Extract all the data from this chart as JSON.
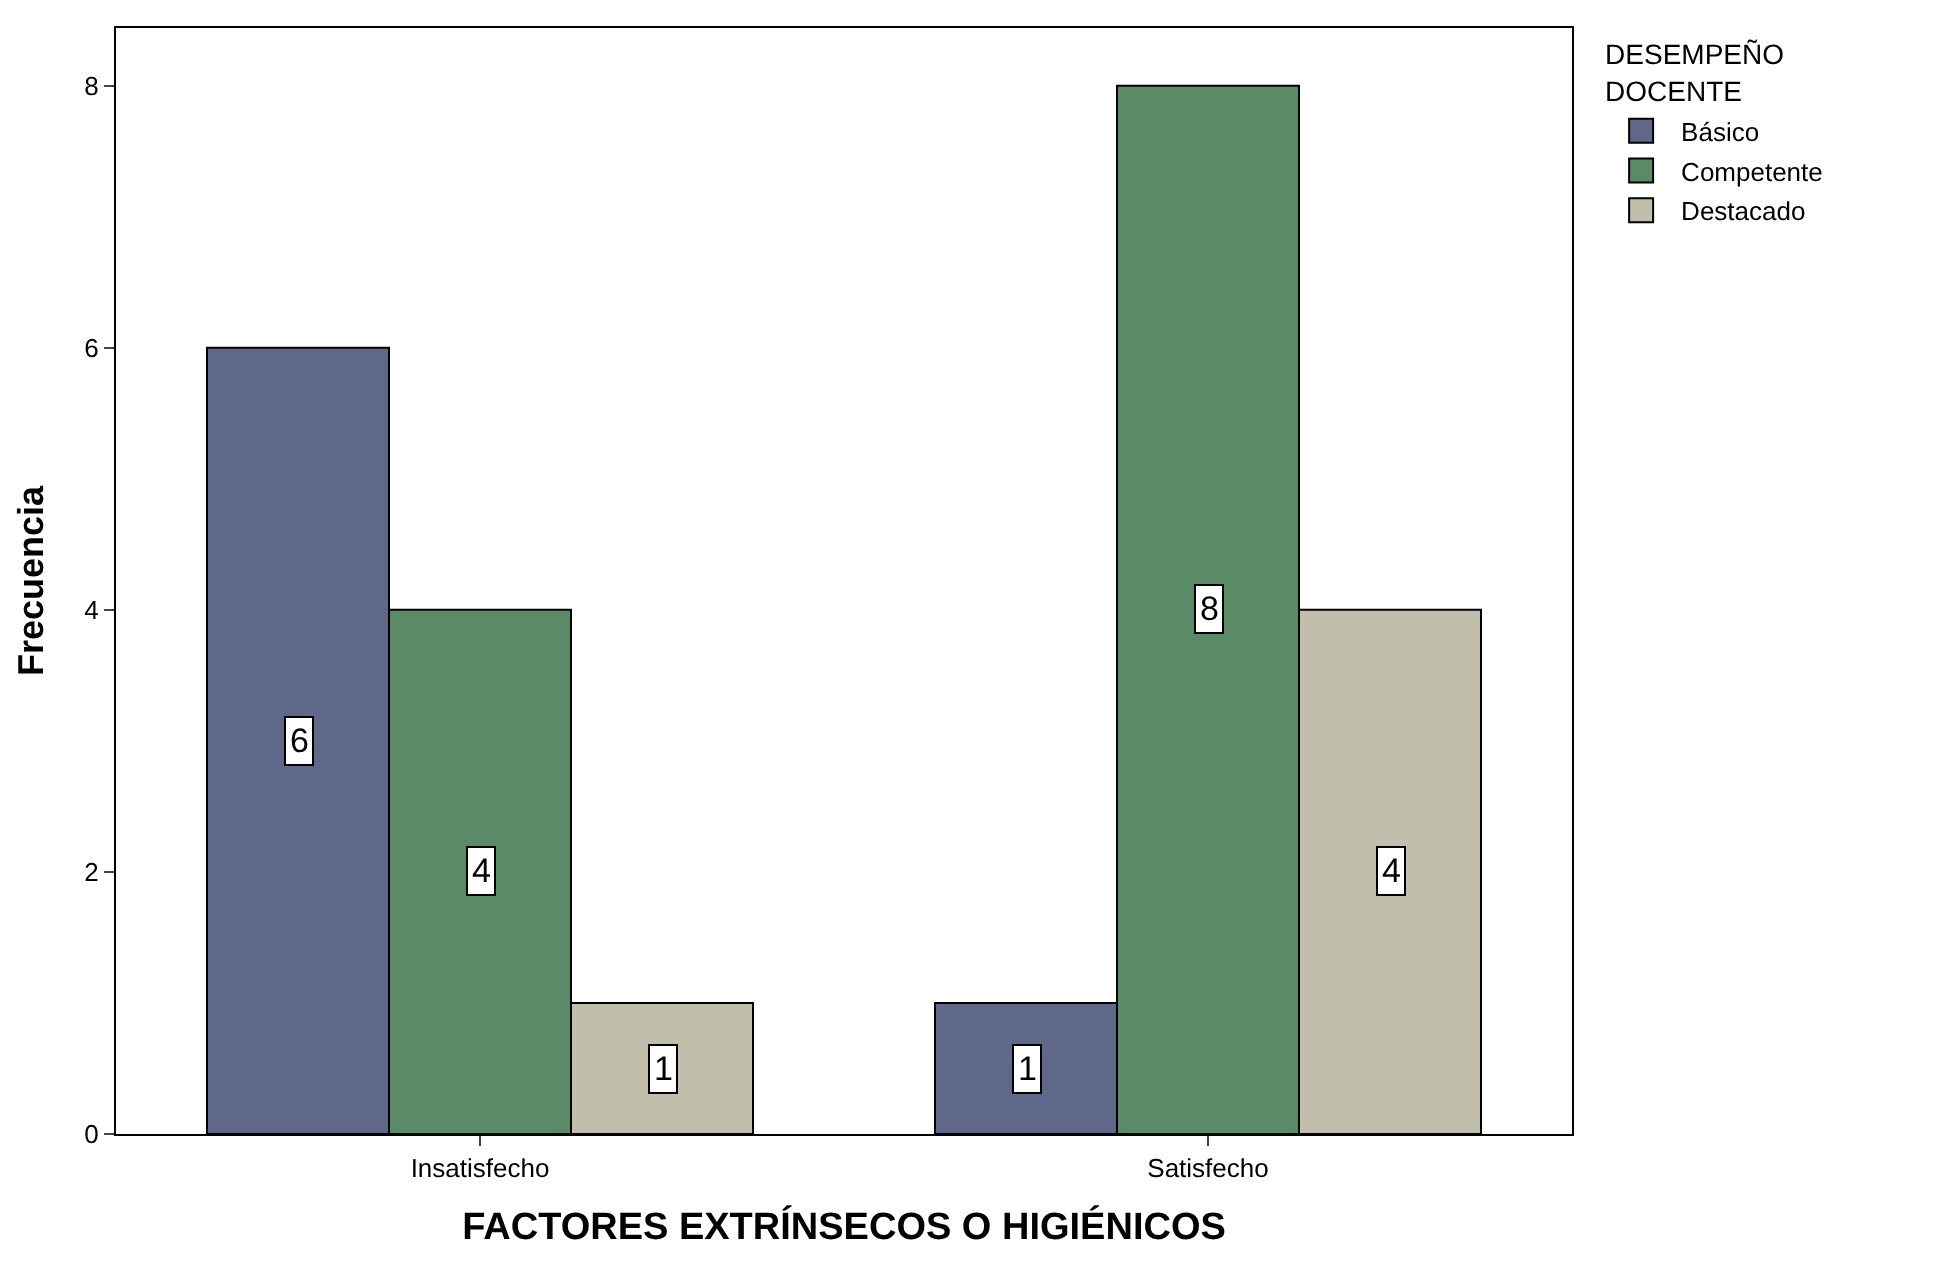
{
  "chart_data": {
    "type": "bar",
    "xlabel": "FACTORES EXTRÍNSECOS O HIGIÉNICOS",
    "ylabel": "Frecuencia",
    "legend_title": "DESEMPEÑO\nDOCENTE",
    "categories": [
      "Insatisfecho",
      "Satisfecho"
    ],
    "series": [
      {
        "name": "Básico",
        "color": "#5f6888",
        "values": [
          6,
          1
        ]
      },
      {
        "name": "Competente",
        "color": "#5b8a66",
        "values": [
          4,
          8
        ]
      },
      {
        "name": "Destacado",
        "color": "#c1bfab",
        "values": [
          1,
          4
        ]
      }
    ],
    "ylim": [
      0,
      8.44
    ],
    "yticks": [
      0,
      2,
      4,
      6,
      8
    ],
    "legend": "top right",
    "data_labels": true
  }
}
